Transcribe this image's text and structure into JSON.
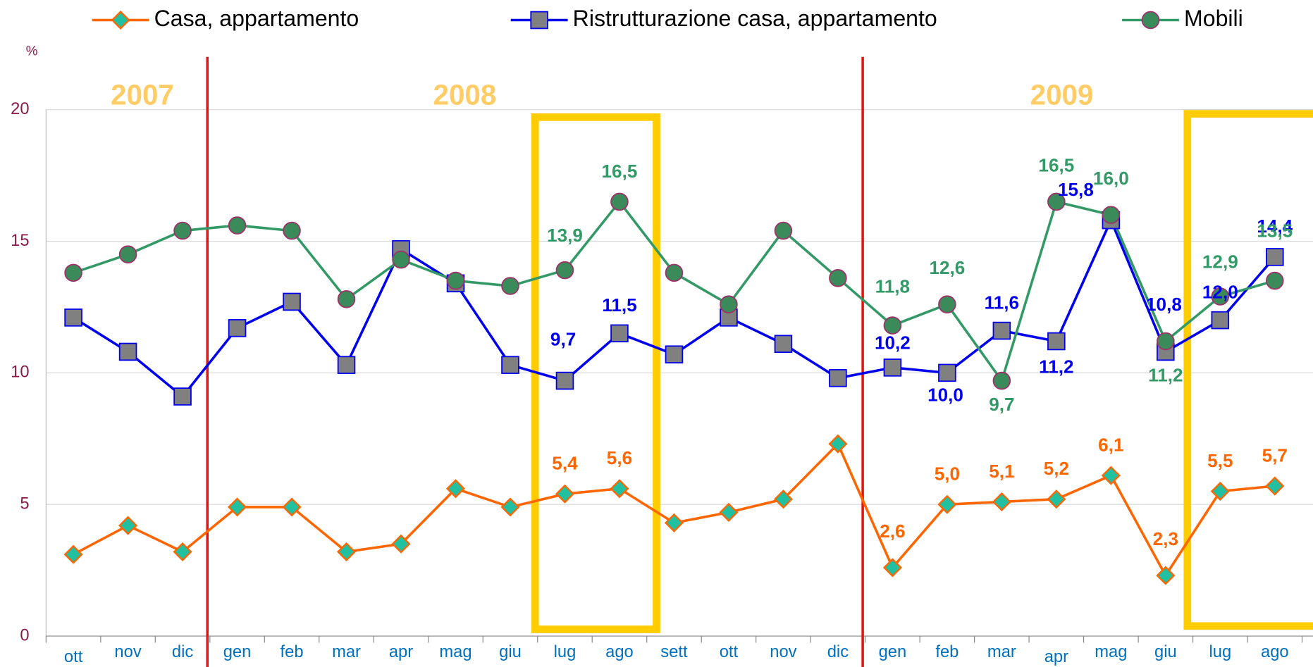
{
  "chart_data": {
    "type": "line",
    "y_unit_label": "%",
    "annotations": [
      "2007",
      "2008",
      "2009"
    ],
    "categories": [
      "ott",
      "nov",
      "dic",
      "gen",
      "feb",
      "mar",
      "apr",
      "mag",
      "giu",
      "lug",
      "ago",
      "sett",
      "ott",
      "nov",
      "dic",
      "gen",
      "feb",
      "mar",
      "apr",
      "mag",
      "giu",
      "lug",
      "ago"
    ],
    "series": [
      {
        "name": "Casa, appartamento",
        "color": "#ff6600",
        "marker": "diamond",
        "marker_fill": "#20c0a0",
        "values": [
          3.1,
          4.2,
          3.2,
          4.9,
          4.9,
          3.2,
          3.5,
          5.6,
          4.9,
          5.4,
          5.6,
          4.3,
          4.7,
          5.2,
          7.3,
          2.6,
          5.0,
          5.1,
          5.2,
          6.1,
          2.3,
          5.5,
          5.7
        ],
        "value_labels": [
          null,
          null,
          null,
          null,
          null,
          null,
          null,
          null,
          null,
          "5,4",
          "5,6",
          null,
          null,
          null,
          null,
          "2,6",
          "5,0",
          "5,1",
          "5,2",
          "6,1",
          "2,3",
          "5,5",
          "5,7"
        ]
      },
      {
        "name": "Ristrutturazione casa, appartamento",
        "color": "#0000ee",
        "marker": "square",
        "marker_fill": "#808080",
        "values": [
          12.1,
          10.8,
          9.1,
          11.7,
          12.7,
          10.3,
          14.7,
          13.4,
          10.3,
          9.7,
          11.5,
          10.7,
          12.1,
          11.1,
          9.8,
          10.2,
          10.0,
          11.6,
          11.2,
          15.8,
          10.8,
          12.0,
          14.4
        ],
        "value_labels": [
          null,
          null,
          null,
          null,
          null,
          null,
          null,
          null,
          null,
          "9,7",
          "11,5",
          null,
          null,
          null,
          null,
          "10,2",
          "10,0",
          "11,6",
          "11,2",
          "15,8",
          "10,8",
          "12,0",
          "14,4"
        ]
      },
      {
        "name": "Mobili",
        "color": "#339966",
        "marker": "circle",
        "marker_fill": "#3a8a5a",
        "values": [
          13.8,
          14.5,
          15.4,
          15.6,
          15.4,
          12.8,
          14.3,
          13.5,
          13.3,
          13.9,
          16.5,
          13.8,
          12.6,
          15.4,
          13.6,
          11.8,
          12.6,
          9.7,
          16.5,
          16.0,
          11.2,
          12.9,
          13.5
        ],
        "value_labels": [
          null,
          null,
          null,
          null,
          null,
          null,
          null,
          null,
          null,
          "13,9",
          "16,5",
          null,
          null,
          null,
          null,
          "11,8",
          "12,6",
          "9,7",
          "16,5",
          "16,0",
          "11,2",
          "12,9",
          "13,5"
        ]
      }
    ],
    "ylim": [
      0,
      20
    ],
    "yticks": [
      0,
      5,
      10,
      15,
      20
    ],
    "grid": true
  }
}
